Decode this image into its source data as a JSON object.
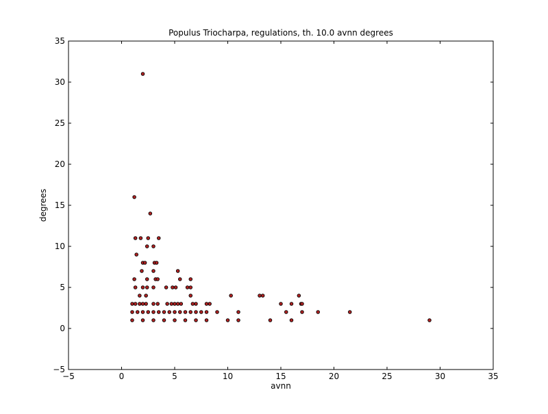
{
  "chart_data": {
    "type": "scatter",
    "title": "Populus Triocharpa, regulations, th. 10.0 avnn degrees",
    "xlabel": "avnn",
    "ylabel": "degrees",
    "xlim": [
      -5,
      35
    ],
    "ylim": [
      -5,
      35
    ],
    "xticks": [
      -5,
      0,
      5,
      10,
      15,
      20,
      25,
      30,
      35
    ],
    "yticks": [
      -5,
      0,
      5,
      10,
      15,
      20,
      25,
      30,
      35
    ],
    "grid": false,
    "legend": "none",
    "marker_color": "#b22222",
    "marker_edge_color": "#000000",
    "points": [
      [
        2.0,
        31
      ],
      [
        1.2,
        16
      ],
      [
        2.7,
        14
      ],
      [
        1.3,
        11
      ],
      [
        1.8,
        11
      ],
      [
        2.5,
        11
      ],
      [
        3.5,
        11
      ],
      [
        2.4,
        10
      ],
      [
        3.0,
        10
      ],
      [
        1.4,
        9
      ],
      [
        2.0,
        8
      ],
      [
        2.2,
        8
      ],
      [
        3.1,
        8
      ],
      [
        3.3,
        8
      ],
      [
        1.9,
        7
      ],
      [
        3.0,
        7
      ],
      [
        5.3,
        7
      ],
      [
        1.2,
        6
      ],
      [
        2.4,
        6
      ],
      [
        3.2,
        6
      ],
      [
        3.4,
        6
      ],
      [
        5.5,
        6
      ],
      [
        6.5,
        6
      ],
      [
        1.3,
        5
      ],
      [
        2.0,
        5
      ],
      [
        2.4,
        5
      ],
      [
        3.0,
        5
      ],
      [
        4.2,
        5
      ],
      [
        4.8,
        5
      ],
      [
        5.1,
        5
      ],
      [
        6.2,
        5
      ],
      [
        6.5,
        5
      ],
      [
        1.7,
        4
      ],
      [
        2.3,
        4
      ],
      [
        6.5,
        4
      ],
      [
        10.3,
        4
      ],
      [
        13.0,
        4
      ],
      [
        13.3,
        4
      ],
      [
        16.7,
        4
      ],
      [
        1.0,
        3
      ],
      [
        1.3,
        3
      ],
      [
        1.7,
        3
      ],
      [
        2.0,
        3
      ],
      [
        2.3,
        3
      ],
      [
        3.0,
        3
      ],
      [
        3.4,
        3
      ],
      [
        4.3,
        3
      ],
      [
        4.7,
        3
      ],
      [
        5.0,
        3
      ],
      [
        5.3,
        3
      ],
      [
        5.6,
        3
      ],
      [
        6.7,
        3
      ],
      [
        7.0,
        3
      ],
      [
        8.0,
        3
      ],
      [
        8.3,
        3
      ],
      [
        15.0,
        3
      ],
      [
        16.0,
        3
      ],
      [
        16.9,
        3
      ],
      [
        17.0,
        3
      ],
      [
        1.0,
        2
      ],
      [
        1.5,
        2
      ],
      [
        2.0,
        2
      ],
      [
        2.5,
        2
      ],
      [
        3.0,
        2
      ],
      [
        3.5,
        2
      ],
      [
        4.0,
        2
      ],
      [
        4.5,
        2
      ],
      [
        5.0,
        2
      ],
      [
        5.5,
        2
      ],
      [
        6.0,
        2
      ],
      [
        6.5,
        2
      ],
      [
        7.0,
        2
      ],
      [
        7.5,
        2
      ],
      [
        8.0,
        2
      ],
      [
        9.0,
        2
      ],
      [
        11.0,
        2
      ],
      [
        15.5,
        2
      ],
      [
        17.0,
        2
      ],
      [
        18.5,
        2
      ],
      [
        21.5,
        2
      ],
      [
        1.0,
        1
      ],
      [
        2.0,
        1
      ],
      [
        3.0,
        1
      ],
      [
        4.0,
        1
      ],
      [
        5.0,
        1
      ],
      [
        6.0,
        1
      ],
      [
        7.0,
        1
      ],
      [
        8.0,
        1
      ],
      [
        10.0,
        1
      ],
      [
        11.0,
        1
      ],
      [
        14.0,
        1
      ],
      [
        16.0,
        1
      ],
      [
        29.0,
        1
      ]
    ]
  }
}
